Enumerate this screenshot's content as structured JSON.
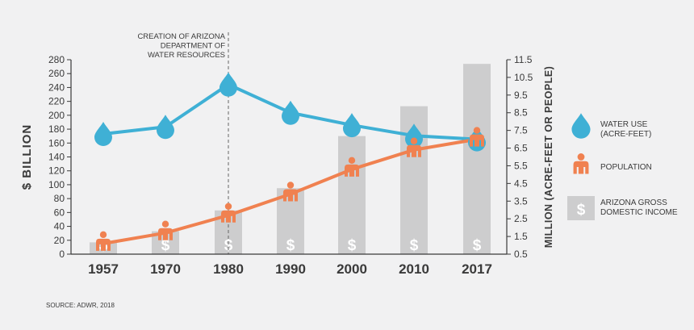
{
  "chart_data": {
    "type": "bar",
    "x": [
      "1957",
      "1970",
      "1980",
      "1990",
      "2000",
      "2010",
      "2017"
    ],
    "left_axis": {
      "label": "$ BILLION",
      "ylim": [
        0,
        280
      ],
      "ticks": [
        "0",
        "20",
        "40",
        "60",
        "80",
        "100",
        "120",
        "140",
        "160",
        "180",
        "200",
        "220",
        "240",
        "260",
        "280"
      ]
    },
    "right_axis": {
      "label": "MILLION (ACRE-FEET OR PEOPLE)",
      "ylim": [
        0.5,
        11.5
      ],
      "ticks": [
        "0.5",
        "1.5",
        "2.5",
        "3.5",
        "4.5",
        "5.5",
        "6.5",
        "7.5",
        "8.5",
        "9.5",
        "10.5",
        "11.5"
      ]
    },
    "series": [
      {
        "name": "ARIZONA GROSS DOMESTIC INCOME",
        "type": "bar",
        "axis": "left",
        "values": [
          17,
          33,
          63,
          95,
          170,
          213,
          274
        ],
        "color": "#cdcdce"
      },
      {
        "name": "WATER USE (ACRE-FEET)",
        "type": "line",
        "axis": "right",
        "values": [
          7.3,
          7.7,
          10.1,
          8.5,
          7.8,
          7.2,
          7.0
        ],
        "color": "#3fb0d5"
      },
      {
        "name": "POPULATION",
        "type": "line",
        "axis": "right",
        "values": [
          1.1,
          1.7,
          2.7,
          3.9,
          5.3,
          6.4,
          7.0
        ],
        "color": "#f08150"
      }
    ],
    "annotation": {
      "text": [
        "CREATION OF ARIZONA",
        "DEPARTMENT OF",
        "WATER RESOURCES"
      ],
      "x": "1980"
    },
    "legend": {
      "placement": "right",
      "items": [
        {
          "lines": [
            "WATER USE",
            "(ACRE-FEET)"
          ],
          "icon": "water-drop-icon"
        },
        {
          "lines": [
            "POPULATION"
          ],
          "icon": "person-icon"
        },
        {
          "lines": [
            "ARIZONA GROSS",
            "DOMESTIC INCOME"
          ],
          "icon": "dollar-icon"
        }
      ]
    },
    "bar_symbol": "$",
    "source": "SOURCE: ADWR, 2018",
    "grid": false
  }
}
